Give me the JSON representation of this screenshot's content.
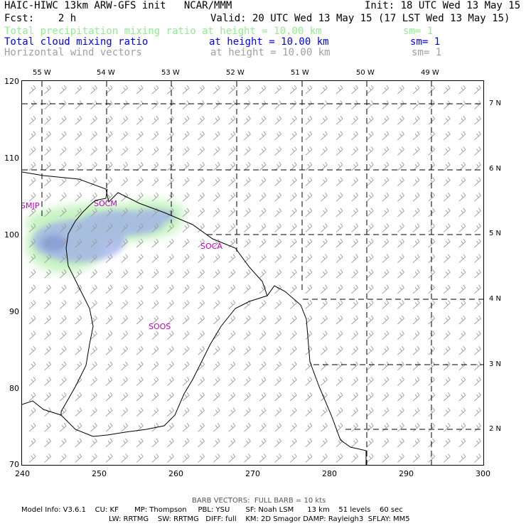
{
  "header": {
    "title": "HAIC-HIWC 13km ARW-GFS init   NCAR/MMM",
    "init": "Init: 18 UTC Wed 13 May 15",
    "fcst": "Fcst:    2 h",
    "valid": "Valid: 20 UTC Wed 13 May 15 (17 LST Wed 13 May 15)"
  },
  "legend": [
    {
      "name": "Total precipitation mixing ratio",
      "height": "at height = 10.00 km",
      "sm": "sm= 1",
      "color": "#90ee90"
    },
    {
      "name": "Total cloud mixing ratio",
      "height": "at height = 10.00 km",
      "sm": "sm= 1",
      "color": "#0000ff"
    },
    {
      "name": "Horizontal wind vectors",
      "height": "at height = 10.00 km",
      "sm": "sm= 1",
      "color": "#a0a0a0"
    }
  ],
  "map": {
    "x_ticks": [
      "240",
      "250",
      "260",
      "270",
      "280",
      "290",
      "300"
    ],
    "y_ticks": [
      "120",
      "110",
      "100",
      "90",
      "80",
      "70"
    ],
    "lon_ticks": [
      "55 W",
      "54 W",
      "53 W",
      "52 W",
      "51 W",
      "50 W",
      "49 W"
    ],
    "lat_ticks": [
      "7 N",
      "6 N",
      "5 N",
      "4 N",
      "3 N",
      "2 N"
    ],
    "stations": [
      "SMJP",
      "SOCM",
      "SOCA",
      "SOOS"
    ],
    "colors": {
      "precip": "#90ee90",
      "cloud": "#6070e0",
      "barb": "#a0a0a0",
      "grid": "#000000",
      "station": "#c000c0"
    },
    "barb_units": "kts"
  },
  "footer": {
    "barb": "BARB VECTORS:  FULL BARB = 10 kts",
    "line1": "Model Info: V3.6.1    CU: KF       MP: Thompson     PBL: YSU       SF: Noah LSM      13 km    51 levels    60 sec",
    "line2": "LW: RRTMG    SW: RRTMG   DIFF: full    KM: 2D Smagor DAMP: Rayleigh3  SFLAY: MM5"
  }
}
